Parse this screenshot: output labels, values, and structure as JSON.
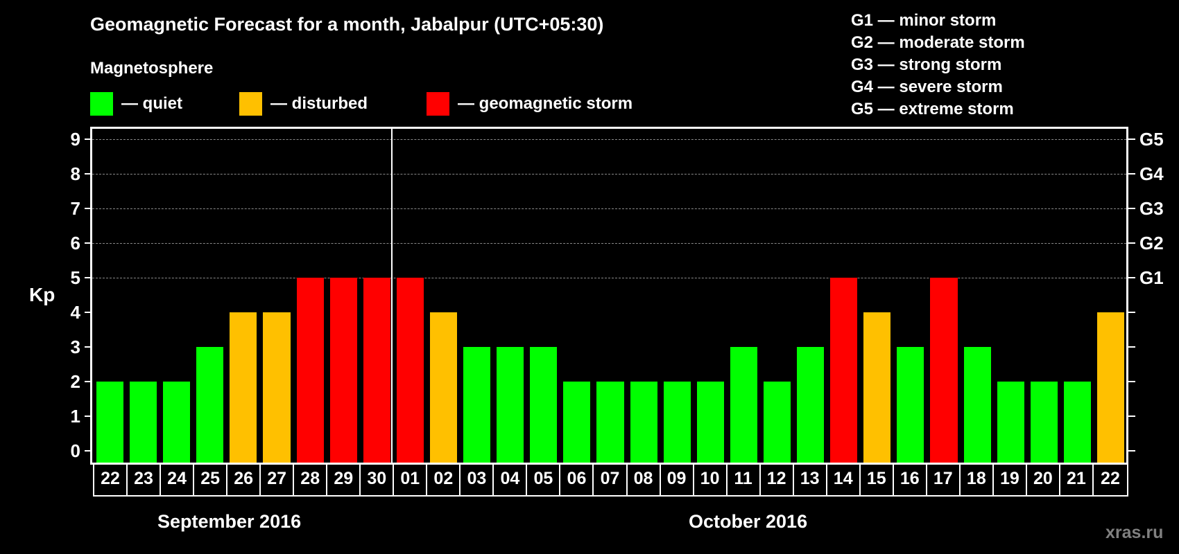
{
  "header": {
    "title": "Geomagnetic Forecast for a month, Jabalpur (UTC+05:30)",
    "subtitle": "Magnetosphere"
  },
  "legend": [
    {
      "label": "— quiet",
      "color": "#00ff00"
    },
    {
      "label": "— disturbed",
      "color": "#ffc000"
    },
    {
      "label": "— geomagnetic storm",
      "color": "#ff0000"
    }
  ],
  "g_scale_legend": [
    "G1 — minor storm",
    "G2 — moderate storm",
    "G3 — strong storm",
    "G4 — severe storm",
    "G5 — extreme storm"
  ],
  "axis": {
    "ylabel": "Kp",
    "yticks": [
      "0",
      "1",
      "2",
      "3",
      "4",
      "5",
      "6",
      "7",
      "8",
      "9"
    ],
    "right_labels": [
      {
        "kp": 5,
        "label": "G1"
      },
      {
        "kp": 6,
        "label": "G2"
      },
      {
        "kp": 7,
        "label": "G3"
      },
      {
        "kp": 8,
        "label": "G4"
      },
      {
        "kp": 9,
        "label": "G5"
      }
    ]
  },
  "months": [
    "September 2016",
    "October 2016"
  ],
  "watermark": "xras.ru",
  "colors": {
    "quiet": "#00ff00",
    "disturbed": "#ffc000",
    "storm": "#ff0000",
    "grid": "#8a8a8a"
  },
  "chart_data": {
    "type": "bar",
    "title": "Geomagnetic Forecast for a month, Jabalpur (UTC+05:30)",
    "subtitle": "Magnetosphere",
    "xlabel": "",
    "ylabel": "Kp",
    "ylim": [
      0,
      9
    ],
    "grid": "horizontal dashed at Kp 5-9",
    "legend_position": "top",
    "categories": [
      "22",
      "23",
      "24",
      "25",
      "26",
      "27",
      "28",
      "29",
      "30",
      "01",
      "02",
      "03",
      "04",
      "05",
      "06",
      "07",
      "08",
      "09",
      "10",
      "11",
      "12",
      "13",
      "14",
      "15",
      "16",
      "17",
      "18",
      "19",
      "20",
      "21",
      "22"
    ],
    "month_groups": [
      {
        "label": "September 2016",
        "days": [
          "22",
          "23",
          "24",
          "25",
          "26",
          "27",
          "28",
          "29",
          "30"
        ]
      },
      {
        "label": "October 2016",
        "days": [
          "01",
          "02",
          "03",
          "04",
          "05",
          "06",
          "07",
          "08",
          "09",
          "10",
          "11",
          "12",
          "13",
          "14",
          "15",
          "16",
          "17",
          "18",
          "19",
          "20",
          "21",
          "22"
        ]
      }
    ],
    "values": [
      2,
      2,
      2,
      3,
      4,
      4,
      5,
      5,
      5,
      5,
      4,
      3,
      3,
      3,
      2,
      2,
      2,
      2,
      2,
      3,
      2,
      3,
      5,
      4,
      3,
      5,
      3,
      2,
      2,
      2,
      4
    ],
    "status": [
      "quiet",
      "quiet",
      "quiet",
      "quiet",
      "disturbed",
      "disturbed",
      "storm",
      "storm",
      "storm",
      "storm",
      "disturbed",
      "quiet",
      "quiet",
      "quiet",
      "quiet",
      "quiet",
      "quiet",
      "quiet",
      "quiet",
      "quiet",
      "quiet",
      "quiet",
      "storm",
      "disturbed",
      "quiet",
      "storm",
      "quiet",
      "quiet",
      "quiet",
      "quiet",
      "disturbed"
    ],
    "secondary_axis": {
      "G1": 5,
      "G2": 6,
      "G3": 7,
      "G4": 8,
      "G5": 9
    }
  }
}
